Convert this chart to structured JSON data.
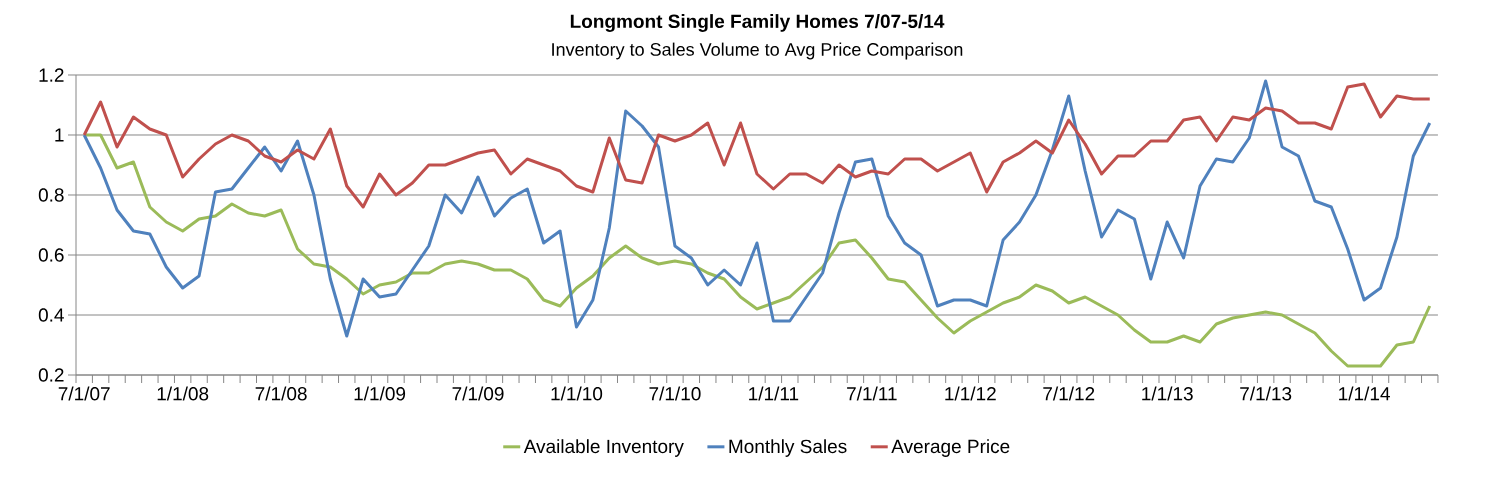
{
  "chart_data": {
    "type": "line",
    "title": "Longmont Single Family Homes 7/07-5/14",
    "subtitle": "Inventory to Sales Volume to Avg Price Comparison",
    "categories": [
      "7/1/07",
      null,
      null,
      null,
      null,
      null,
      "1/1/08",
      null,
      null,
      null,
      null,
      null,
      "7/1/08",
      null,
      null,
      null,
      null,
      null,
      "1/1/09",
      null,
      null,
      null,
      null,
      null,
      "7/1/09",
      null,
      null,
      null,
      null,
      null,
      "1/1/10",
      null,
      null,
      null,
      null,
      null,
      "7/1/10",
      null,
      null,
      null,
      null,
      null,
      "1/1/11",
      null,
      null,
      null,
      null,
      null,
      "7/1/11",
      null,
      null,
      null,
      null,
      null,
      "1/1/12",
      null,
      null,
      null,
      null,
      null,
      "7/1/12",
      null,
      null,
      null,
      null,
      null,
      "1/1/13",
      null,
      null,
      null,
      null,
      null,
      "7/1/13",
      null,
      null,
      null,
      null,
      null,
      "1/1/14",
      null,
      null,
      null,
      null
    ],
    "series": [
      {
        "name": "Available Inventory",
        "color": "#9bbb59",
        "values": [
          1.0,
          1.0,
          0.89,
          0.91,
          0.76,
          0.71,
          0.68,
          0.72,
          0.73,
          0.77,
          0.74,
          0.73,
          0.75,
          0.62,
          0.57,
          0.56,
          0.52,
          0.47,
          0.5,
          0.51,
          0.54,
          0.54,
          0.57,
          0.58,
          0.57,
          0.55,
          0.55,
          0.52,
          0.45,
          0.43,
          0.49,
          0.53,
          0.59,
          0.63,
          0.59,
          0.57,
          0.58,
          0.57,
          0.54,
          0.52,
          0.46,
          0.42,
          0.44,
          0.46,
          0.51,
          0.56,
          0.64,
          0.65,
          0.59,
          0.52,
          0.51,
          0.45,
          0.39,
          0.34,
          0.38,
          0.41,
          0.44,
          0.46,
          0.5,
          0.48,
          0.44,
          0.46,
          0.43,
          0.4,
          0.35,
          0.31,
          0.31,
          0.33,
          0.31,
          0.37,
          0.39,
          0.4,
          0.41,
          0.4,
          0.37,
          0.34,
          0.28,
          0.23,
          0.23,
          0.23,
          0.3,
          0.31,
          0.43
        ]
      },
      {
        "name": "Monthly Sales",
        "color": "#4f81bd",
        "values": [
          1.0,
          0.89,
          0.75,
          0.68,
          0.67,
          0.56,
          0.49,
          0.53,
          0.81,
          0.82,
          0.89,
          0.96,
          0.88,
          0.98,
          0.8,
          0.52,
          0.33,
          0.52,
          0.46,
          0.47,
          0.55,
          0.63,
          0.8,
          0.74,
          0.86,
          0.73,
          0.79,
          0.82,
          0.64,
          0.68,
          0.36,
          0.45,
          0.69,
          1.08,
          1.03,
          0.96,
          0.63,
          0.59,
          0.5,
          0.55,
          0.5,
          0.64,
          0.38,
          0.38,
          0.46,
          0.54,
          0.74,
          0.91,
          0.92,
          0.73,
          0.64,
          0.6,
          0.43,
          0.45,
          0.45,
          0.43,
          0.65,
          0.71,
          0.8,
          0.95,
          1.13,
          0.88,
          0.66,
          0.75,
          0.72,
          0.52,
          0.71,
          0.59,
          0.83,
          0.92,
          0.91,
          0.99,
          1.18,
          0.96,
          0.93,
          0.78,
          0.76,
          0.62,
          0.45,
          0.49,
          0.66,
          0.93,
          1.04
        ]
      },
      {
        "name": "Average Price",
        "color": "#c0504d",
        "values": [
          1.0,
          1.11,
          0.96,
          1.06,
          1.02,
          1.0,
          0.86,
          0.92,
          0.97,
          1.0,
          0.98,
          0.93,
          0.91,
          0.95,
          0.92,
          1.02,
          0.83,
          0.76,
          0.87,
          0.8,
          0.84,
          0.9,
          0.9,
          0.92,
          0.94,
          0.95,
          0.87,
          0.92,
          0.9,
          0.88,
          0.83,
          0.81,
          0.99,
          0.85,
          0.84,
          1.0,
          0.98,
          1.0,
          1.04,
          0.9,
          1.04,
          0.87,
          0.82,
          0.87,
          0.87,
          0.84,
          0.9,
          0.86,
          0.88,
          0.87,
          0.92,
          0.92,
          0.88,
          0.91,
          0.94,
          0.81,
          0.91,
          0.94,
          0.98,
          0.94,
          1.05,
          0.97,
          0.87,
          0.93,
          0.93,
          0.98,
          0.98,
          1.05,
          1.06,
          0.98,
          1.06,
          1.05,
          1.09,
          1.08,
          1.04,
          1.04,
          1.02,
          1.16,
          1.17,
          1.06,
          1.13,
          1.12,
          1.12
        ]
      }
    ],
    "ylim": [
      0.2,
      1.2
    ],
    "yticks": [
      0.2,
      0.4,
      0.6,
      0.8,
      1,
      1.2
    ],
    "grid": "y",
    "legend": "bottom"
  }
}
